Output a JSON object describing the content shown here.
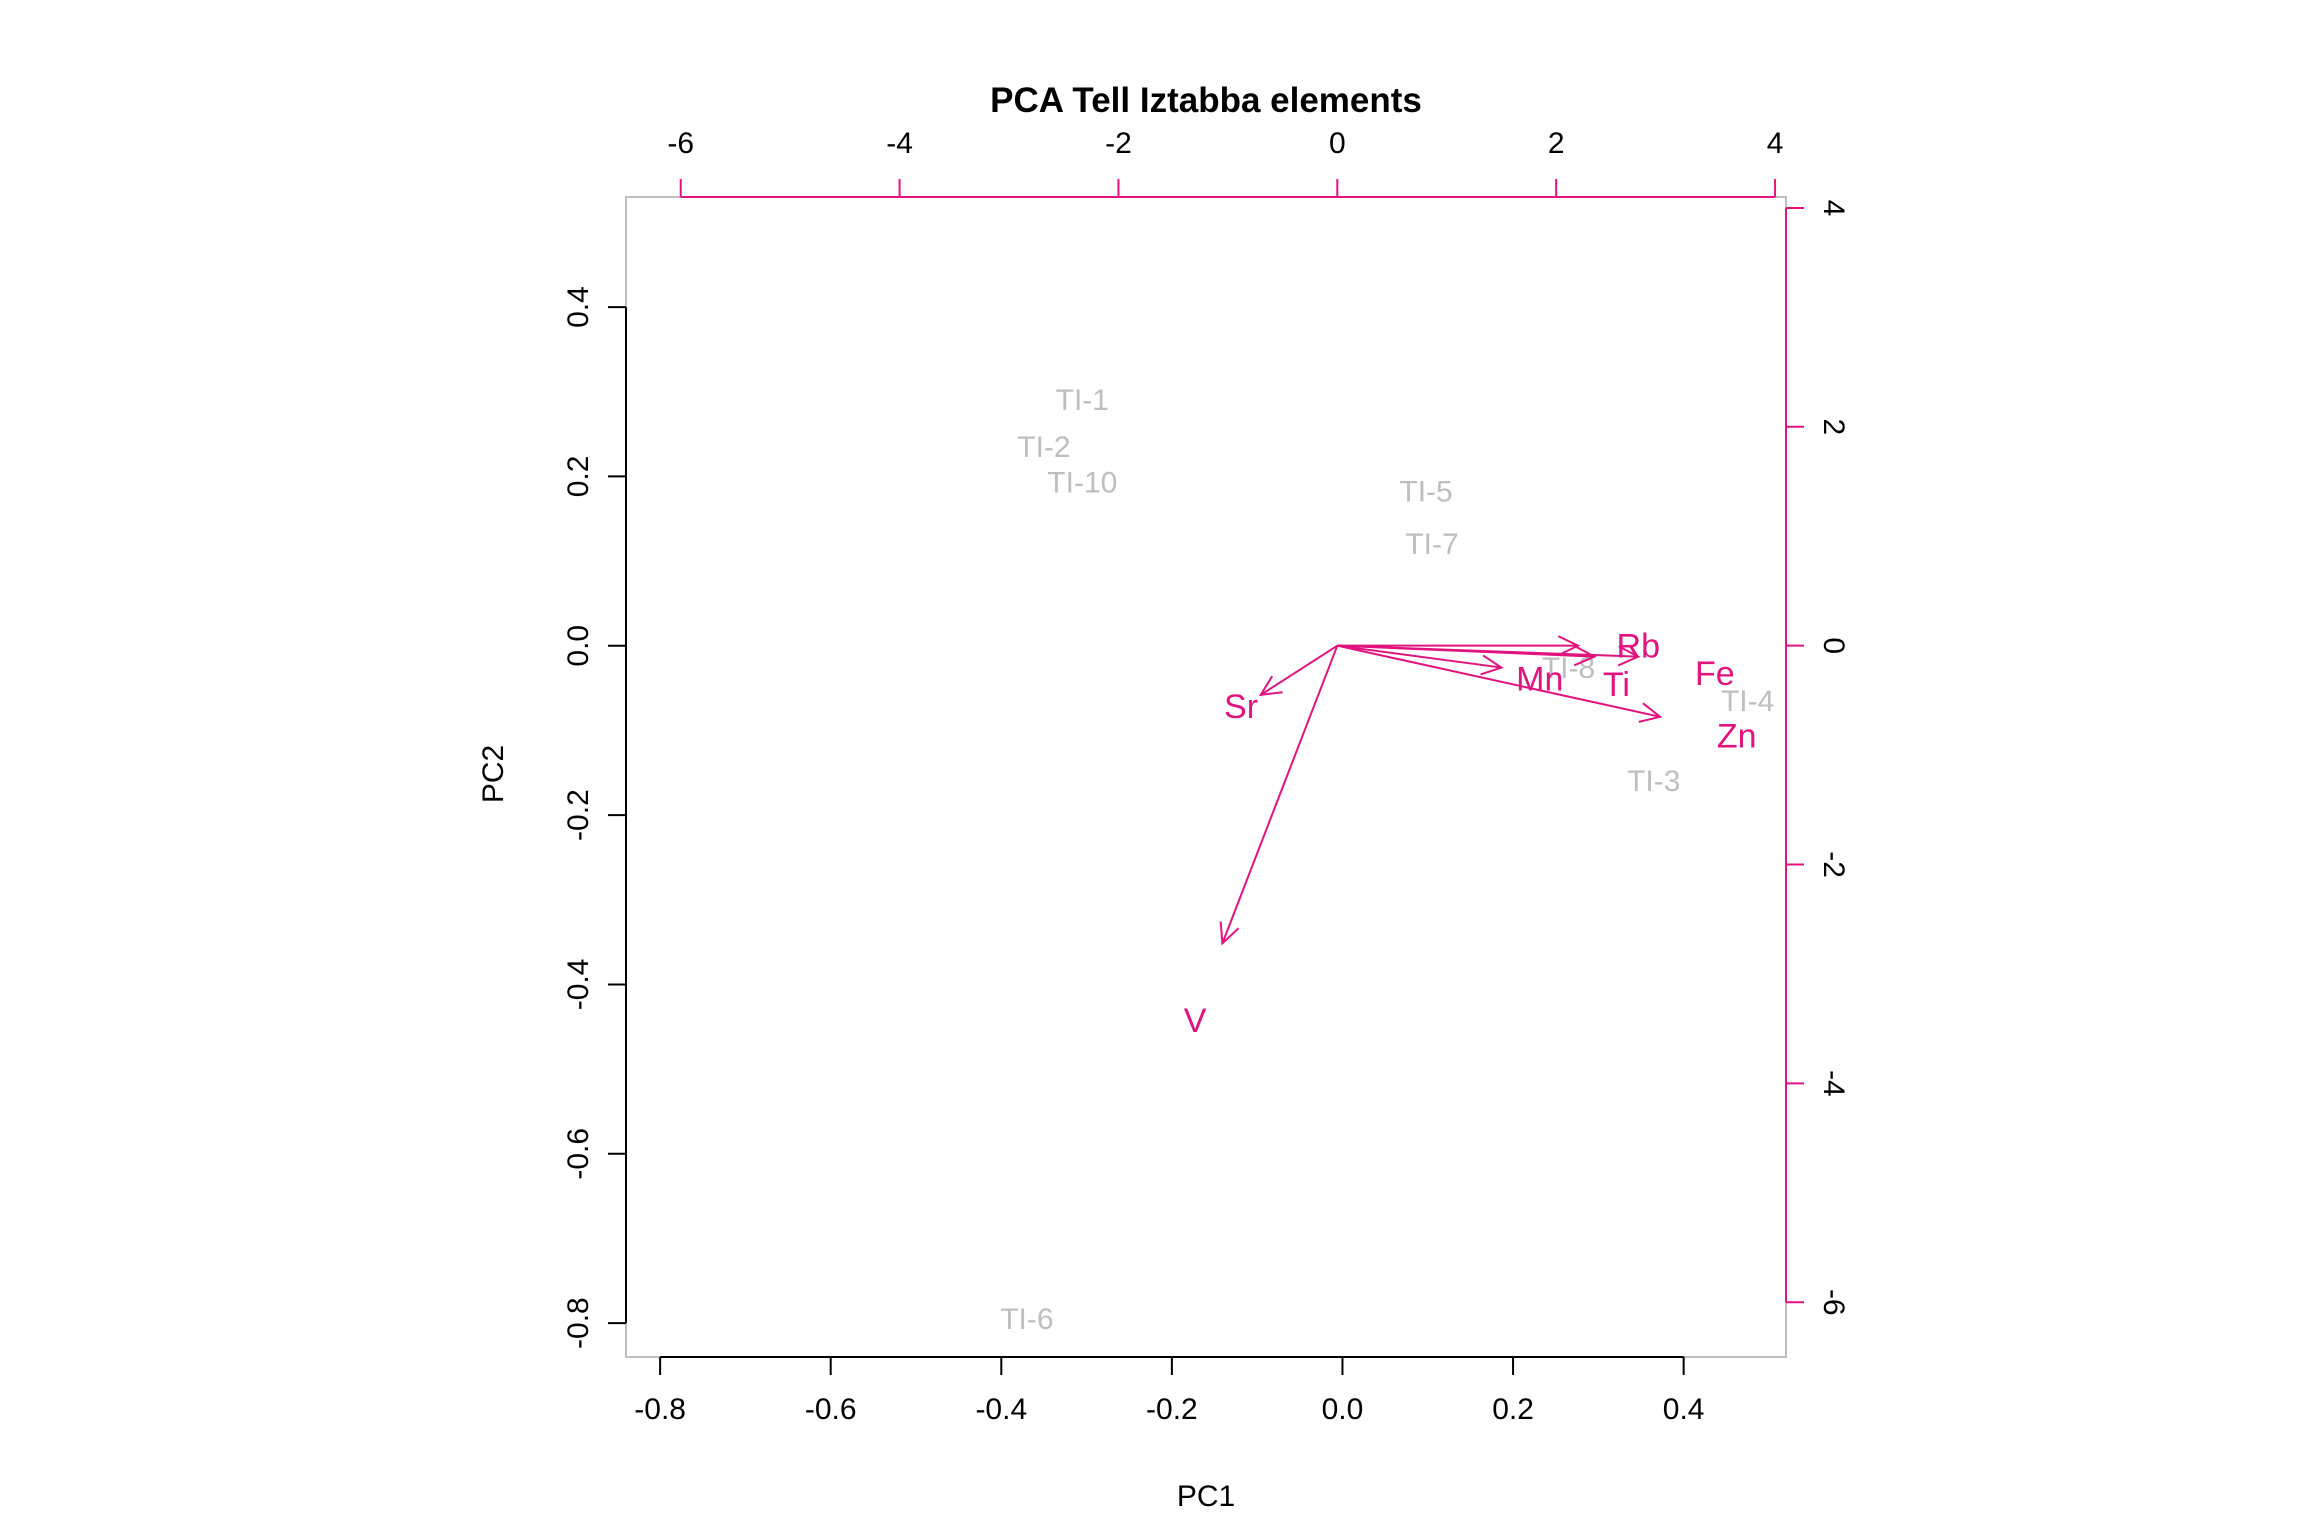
{
  "chart_data": {
    "type": "scatter",
    "title": "PCA Tell Iztabba elements",
    "xlabel": "PC1",
    "ylabel": "PC2",
    "xlim": [
      -0.84,
      0.52
    ],
    "ylim": [
      -0.84,
      0.53
    ],
    "xticks": [
      -0.8,
      -0.6,
      -0.4,
      -0.2,
      0.0,
      0.2,
      0.4
    ],
    "yticks": [
      -0.8,
      -0.6,
      -0.4,
      -0.2,
      0.0,
      0.2,
      0.4
    ],
    "top_axis": {
      "lim": [
        -6.5,
        4.1
      ],
      "ticks": [
        -6,
        -4,
        -2,
        0,
        2,
        4
      ]
    },
    "right_axis": {
      "lim": [
        -6.5,
        4.1
      ],
      "ticks": [
        -6,
        -4,
        -2,
        0,
        2,
        4
      ]
    },
    "grid": false,
    "colors": {
      "observations": "#bebebe",
      "loadings": "#e0137f",
      "frame": "#bebebe"
    },
    "observations": [
      {
        "label": "TI-1",
        "x": -0.305,
        "y": 0.29
      },
      {
        "label": "TI-2",
        "x": -0.35,
        "y": 0.235
      },
      {
        "label": "TI-10",
        "x": -0.305,
        "y": 0.193
      },
      {
        "label": "TI-5",
        "x": 0.098,
        "y": 0.182
      },
      {
        "label": "TI-7",
        "x": 0.105,
        "y": 0.12
      },
      {
        "label": "TI-8",
        "x": 0.265,
        "y": -0.026
      },
      {
        "label": "TI-4",
        "x": 0.475,
        "y": -0.065
      },
      {
        "label": "TI-3",
        "x": 0.365,
        "y": -0.16
      },
      {
        "label": "TI-6",
        "x": -0.37,
        "y": -0.795
      }
    ],
    "loadings": [
      {
        "label": "Rb",
        "x": 2.2,
        "y": 0.0,
        "label_x": 2.75,
        "label_y": 0.0
      },
      {
        "label": "Fe",
        "x": 2.75,
        "y": -0.1,
        "label_x": 3.45,
        "label_y": -0.25
      },
      {
        "label": "Ti",
        "x": 2.35,
        "y": -0.1,
        "label_x": 2.55,
        "label_y": -0.35
      },
      {
        "label": "Mn",
        "x": 1.5,
        "y": -0.2,
        "label_x": 1.85,
        "label_y": -0.3
      },
      {
        "label": "Zn",
        "x": 2.95,
        "y": -0.65,
        "label_x": 3.65,
        "label_y": -0.82
      },
      {
        "label": "Sr",
        "x": -0.7,
        "y": -0.45,
        "label_x": -0.88,
        "label_y": -0.55
      },
      {
        "label": "V",
        "x": -1.05,
        "y": -2.72,
        "label_x": -1.3,
        "label_y": -3.42
      }
    ]
  }
}
